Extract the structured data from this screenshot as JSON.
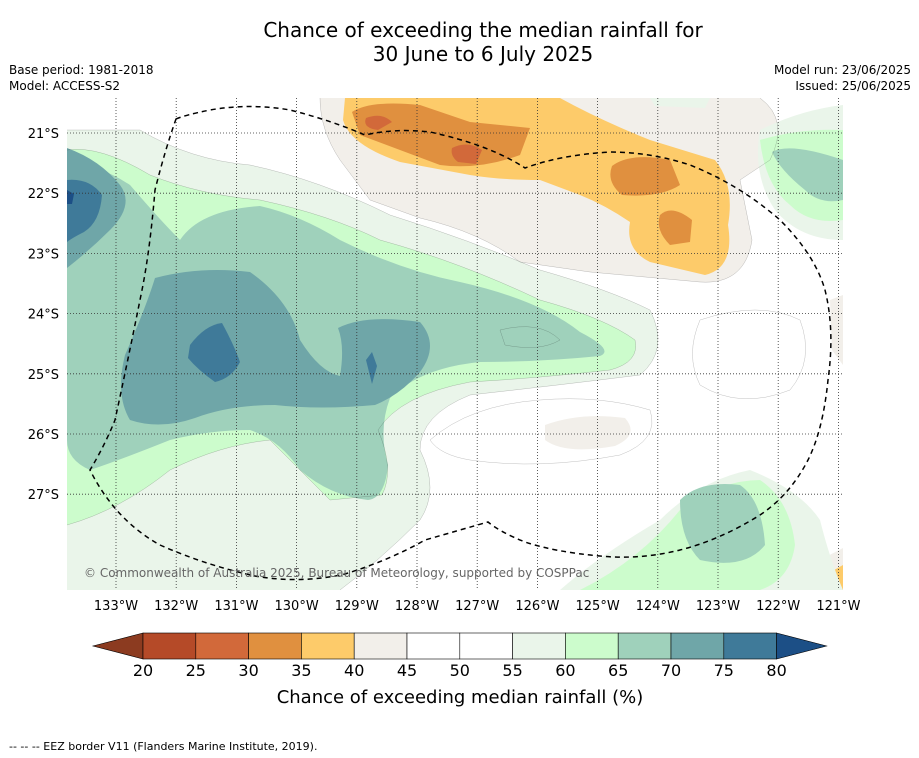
{
  "header": {
    "title_line1": "Chance of exceeding the median rainfall for",
    "title_line2": "30 June to 6 July 2025",
    "base_period": "Base period: 1981-2018",
    "model": "Model: ACCESS-S2",
    "model_run": "Model run: 23/06/2025",
    "issued": "Issued: 25/06/2025"
  },
  "map": {
    "lon_labels": [
      "133°W",
      "132°W",
      "131°W",
      "130°W",
      "129°W",
      "128°W",
      "127°W",
      "126°W",
      "125°W",
      "124°W",
      "123°W",
      "122°W",
      "121°W"
    ],
    "lat_labels": [
      "21°S",
      "22°S",
      "23°S",
      "24°S",
      "25°S",
      "26°S",
      "27°S"
    ],
    "copyright": "© Commonwealth of Australia 2025, Bureau of Meteorology, supported by COSPPac"
  },
  "colorbar": {
    "ticks": [
      "20",
      "25",
      "30",
      "35",
      "40",
      "45",
      "50",
      "55",
      "60",
      "65",
      "70",
      "75",
      "80"
    ],
    "label": "Chance of exceeding median rainfall (%)",
    "colors": [
      "#8c3b20",
      "#b54a28",
      "#d2693a",
      "#e0903f",
      "#fdcb6a",
      "#f2efea",
      "#ffffff",
      "#ffffff",
      "#eaf5ea",
      "#ccfccc",
      "#9fd1bb",
      "#6fa6a8",
      "#3f7a99",
      "#1c4f86"
    ]
  },
  "footer": {
    "eez_note": "--  --  -- EEZ border V11 (Flanders Marine Institute, 2019)."
  }
}
